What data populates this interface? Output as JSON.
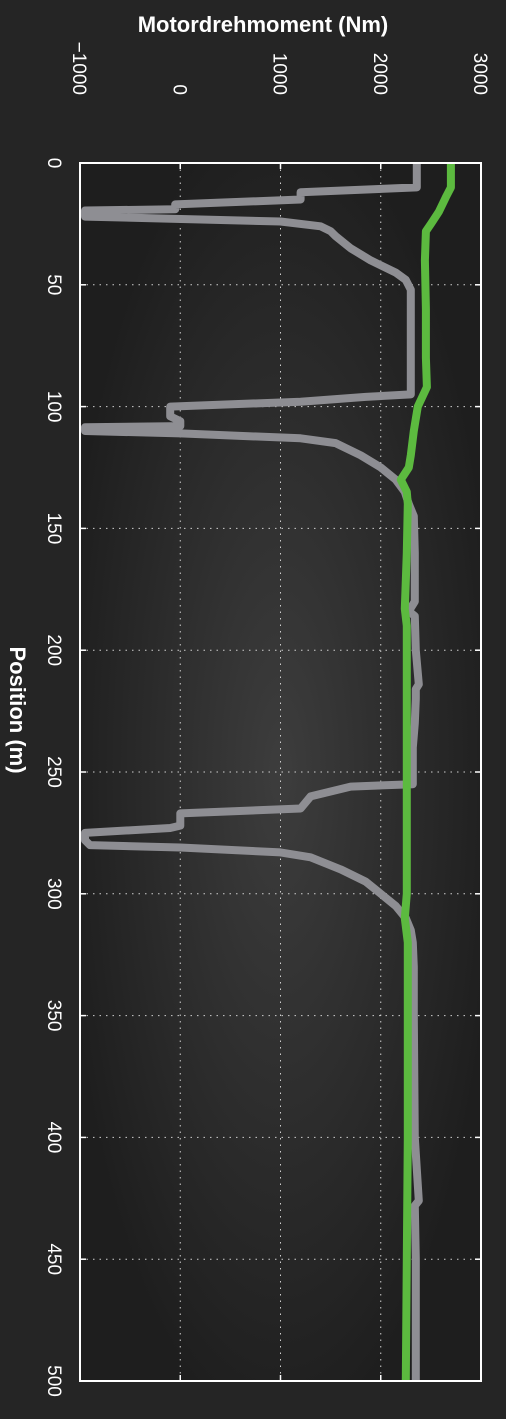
{
  "chart_data": {
    "type": "line",
    "title": "",
    "xlabel": "Position (m)",
    "ylabel": "Motordrehmoment (Nm)",
    "xlim": [
      0,
      500
    ],
    "ylim": [
      -1000,
      3000
    ],
    "x_ticks": [
      "0",
      "50",
      "100",
      "150",
      "200",
      "250",
      "300",
      "350",
      "400",
      "450",
      "500"
    ],
    "y_ticks": [
      "−1000",
      "0",
      "1000",
      "2000",
      "3000"
    ],
    "grid": true,
    "legend": "none",
    "series": [
      {
        "color": "#8e8e93",
        "points": [
          [
            0,
            2360
          ],
          [
            10,
            2360
          ],
          [
            12,
            1200
          ],
          [
            15,
            1200
          ],
          [
            17,
            -50
          ],
          [
            19,
            -50
          ],
          [
            19.5,
            -950
          ],
          [
            22,
            -950
          ],
          [
            24,
            1000
          ],
          [
            26,
            1400
          ],
          [
            28,
            1500
          ],
          [
            30,
            1550
          ],
          [
            35,
            1700
          ],
          [
            40,
            1900
          ],
          [
            45,
            2150
          ],
          [
            48,
            2250
          ],
          [
            52,
            2300
          ],
          [
            60,
            2300
          ],
          [
            80,
            2300
          ],
          [
            95,
            2300
          ],
          [
            96,
            1850
          ],
          [
            98,
            1200
          ],
          [
            100,
            -100
          ],
          [
            104,
            -100
          ],
          [
            106,
            0
          ],
          [
            108,
            0
          ],
          [
            108.5,
            -950
          ],
          [
            110,
            -950
          ],
          [
            111,
            0
          ],
          [
            113,
            1200
          ],
          [
            115,
            1550
          ],
          [
            120,
            1800
          ],
          [
            125,
            2000
          ],
          [
            130,
            2150
          ],
          [
            135,
            2240
          ],
          [
            140,
            2280
          ],
          [
            145,
            2330
          ],
          [
            160,
            2340
          ],
          [
            180,
            2340
          ],
          [
            184,
            2280
          ],
          [
            186,
            2340
          ],
          [
            200,
            2350
          ],
          [
            214,
            2380
          ],
          [
            216,
            2350
          ],
          [
            220,
            2350
          ],
          [
            230,
            2340
          ],
          [
            240,
            2320
          ],
          [
            255,
            2320
          ],
          [
            256,
            1700
          ],
          [
            260,
            1300
          ],
          [
            265,
            1200
          ],
          [
            267,
            0
          ],
          [
            272,
            0
          ],
          [
            273,
            -100
          ],
          [
            275,
            -950
          ],
          [
            278,
            -950
          ],
          [
            280,
            -900
          ],
          [
            281,
            0
          ],
          [
            283,
            1000
          ],
          [
            285,
            1300
          ],
          [
            290,
            1600
          ],
          [
            295,
            1850
          ],
          [
            300,
            2000
          ],
          [
            305,
            2150
          ],
          [
            310,
            2250
          ],
          [
            315,
            2300
          ],
          [
            320,
            2320
          ],
          [
            330,
            2330
          ],
          [
            350,
            2330
          ],
          [
            400,
            2340
          ],
          [
            426,
            2380
          ],
          [
            428,
            2340
          ],
          [
            450,
            2350
          ],
          [
            500,
            2350
          ]
        ]
      },
      {
        "color": "#5cba3f",
        "points": [
          [
            0,
            2700
          ],
          [
            10,
            2700
          ],
          [
            14,
            2650
          ],
          [
            20,
            2580
          ],
          [
            25,
            2500
          ],
          [
            28,
            2450
          ],
          [
            40,
            2440
          ],
          [
            60,
            2450
          ],
          [
            80,
            2450
          ],
          [
            92,
            2460
          ],
          [
            100,
            2370
          ],
          [
            110,
            2330
          ],
          [
            120,
            2300
          ],
          [
            125,
            2280
          ],
          [
            130,
            2200
          ],
          [
            135,
            2260
          ],
          [
            140,
            2270
          ],
          [
            160,
            2260
          ],
          [
            183,
            2240
          ],
          [
            190,
            2260
          ],
          [
            200,
            2260
          ],
          [
            250,
            2260
          ],
          [
            300,
            2260
          ],
          [
            310,
            2240
          ],
          [
            320,
            2270
          ],
          [
            400,
            2270
          ],
          [
            500,
            2250
          ]
        ]
      }
    ]
  }
}
